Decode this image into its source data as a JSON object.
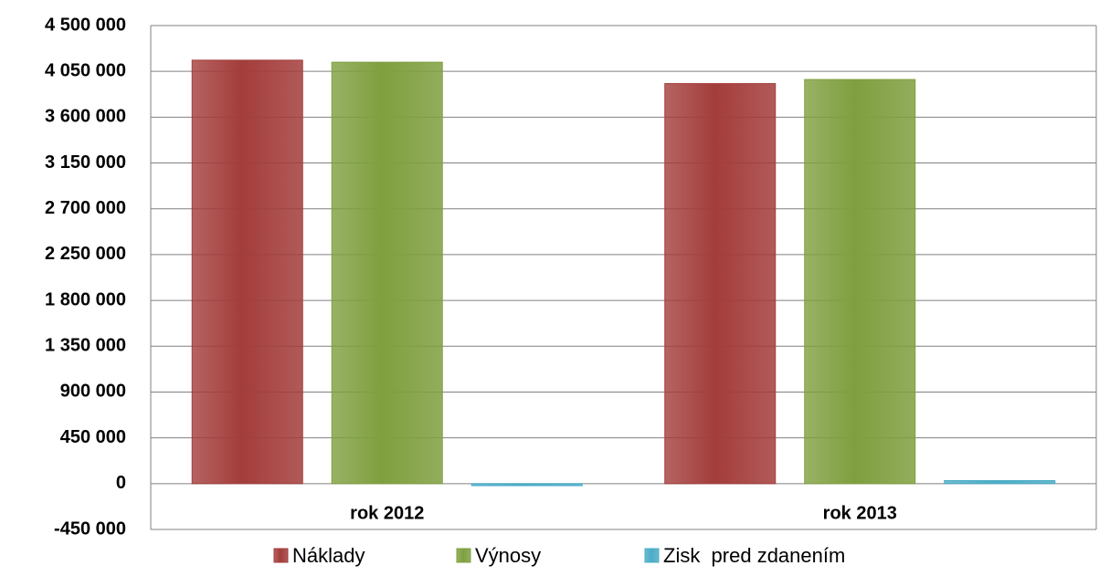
{
  "chart_data": {
    "type": "bar",
    "categories": [
      "rok 2012",
      "rok 2013"
    ],
    "series": [
      {
        "name": "Náklady",
        "color": "#a33d3b",
        "values": [
          4160000,
          3930000
        ]
      },
      {
        "name": "Výnosy",
        "color": "#7f9f3f",
        "values": [
          4140000,
          3970000
        ]
      },
      {
        "name": "Zisk  pred zdanením",
        "color": "#4bacc6",
        "values": [
          -20000,
          30000
        ]
      }
    ],
    "ylim": [
      -450000,
      4500000
    ],
    "yticks": [
      {
        "value": -450000,
        "label": "-450 000"
      },
      0,
      {
        "value": 450000,
        "label": "450 000"
      },
      {
        "value": 900000,
        "label": "900 000"
      },
      {
        "value": 1350000,
        "label": "1 350 000"
      },
      {
        "value": 1800000,
        "label": "1 800 000"
      },
      {
        "value": 2250000,
        "label": "2 250 000"
      },
      {
        "value": 2700000,
        "label": "2 700 000"
      },
      {
        "value": 3150000,
        "label": "3 150 000"
      },
      {
        "value": 3600000,
        "label": "3 600 000"
      },
      {
        "value": 4050000,
        "label": "4 050 000"
      },
      {
        "value": 4500000,
        "label": "4 500 000"
      }
    ],
    "grid": true,
    "legend": "bottom"
  }
}
